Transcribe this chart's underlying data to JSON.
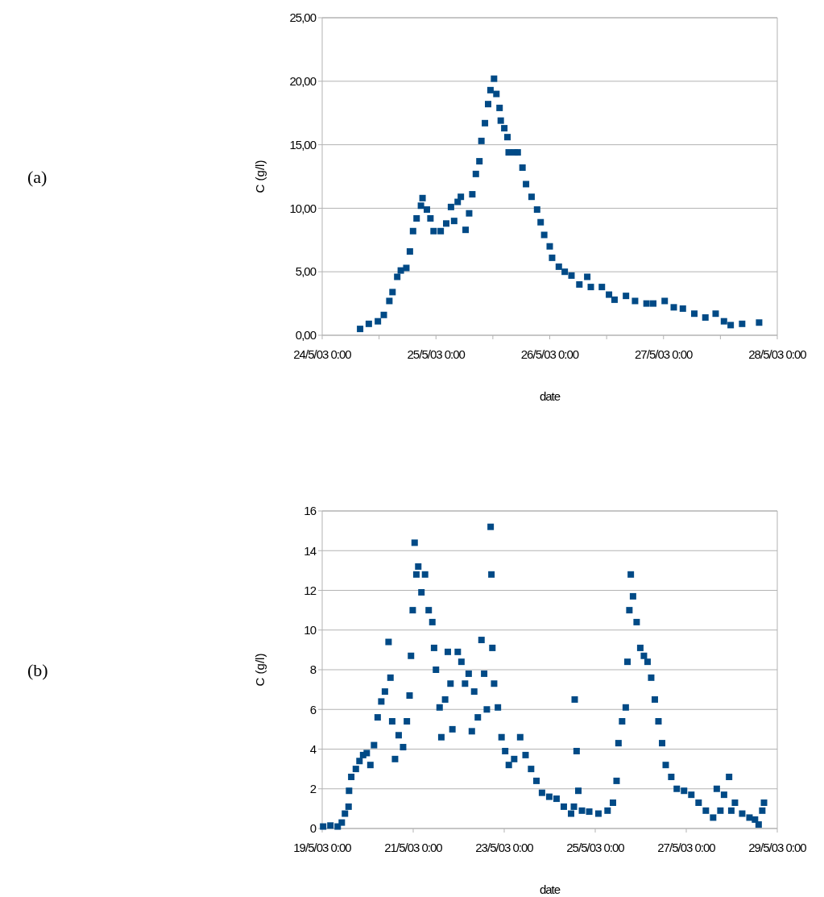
{
  "chart_data": [
    {
      "type": "scatter",
      "annotations": [
        "(a)"
      ],
      "xlabel": "date",
      "ylabel": "C (g/l)",
      "marker": "square",
      "grid": "y",
      "xlim": [
        "--05-24",
        "--05-28"
      ],
      "xticks": [
        {
          "value": "--05-24",
          "label": "24/5/03 0:00"
        },
        {
          "value": "--05-24T12:00",
          "label": null
        },
        {
          "value": "--05-25",
          "label": "25/5/03 0:00"
        },
        {
          "value": "--05-25T12:00",
          "label": null
        },
        {
          "value": "--05-26",
          "label": "26/5/03 0:00"
        },
        {
          "value": "--05-26T12:00",
          "label": null
        },
        {
          "value": "--05-27",
          "label": "27/5/03 0:00"
        },
        {
          "value": "--05-27T12:00",
          "label": null
        },
        {
          "value": "--05-28",
          "label": "28/5/03 0:00"
        }
      ],
      "ylim": [
        0,
        25
      ],
      "yticks": [
        {
          "value": 0,
          "label": "0,00"
        },
        {
          "value": 5,
          "label": "5,00"
        },
        {
          "value": 10,
          "label": "10,00"
        },
        {
          "value": 15,
          "label": "15,00"
        },
        {
          "value": 20,
          "label": "20,00"
        },
        {
          "value": 25,
          "label": "25,00"
        }
      ],
      "series": [
        {
          "color": "#004a86",
          "x": [
            "--05-24T08:00",
            "--05-24T09:50",
            "--05-24T11:45",
            "--05-24T13:00",
            "--05-24T14:10",
            "--05-24T14:50",
            "--05-24T15:50",
            "--05-24T16:35",
            "--05-24T17:45",
            "--05-24T18:30",
            "--05-24T19:10",
            "--05-24T19:55",
            "--05-24T20:50",
            "--05-24T21:10",
            "--05-24T22:05",
            "--05-24T22:50",
            "--05-24T23:30",
            "--05-25T01:00",
            "--05-25T02:10",
            "--05-25T03:10",
            "--05-25T03:50",
            "--05-25T04:35",
            "--05-25T05:15",
            "--05-25T06:15",
            "--05-25T07:00",
            "--05-25T07:40",
            "--05-25T08:25",
            "--05-25T09:10",
            "--05-25T09:35",
            "--05-25T10:20",
            "--05-25T11:00",
            "--05-25T11:30",
            "--05-25T12:15",
            "--05-25T12:45",
            "--05-25T13:25",
            "--05-25T13:40",
            "--05-25T14:25",
            "--05-25T15:05",
            "--05-25T15:20",
            "--05-25T16:35",
            "--05-25T17:15",
            "--05-25T18:15",
            "--05-25T19:00",
            "--05-25T20:10",
            "--05-25T21:20",
            "--05-25T22:05",
            "--05-25T22:50",
            "--05-26T00:00",
            "--05-26T00:30",
            "--05-26T01:55",
            "--05-26T03:10",
            "--05-26T04:35",
            "--05-26T06:15",
            "--05-26T07:55",
            "--05-26T08:40",
            "--05-26T11:00",
            "--05-26T12:30",
            "--05-26T13:40",
            "--05-26T16:05",
            "--05-26T18:00",
            "--05-26T20:25",
            "--05-26T21:50",
            "--05-27T00:15",
            "--05-27T02:10",
            "--05-27T04:05",
            "--05-27T06:30",
            "--05-27T08:50",
            "--05-27T11:00",
            "--05-27T12:45",
            "--05-27T14:10",
            "--05-27T16:35",
            "--05-27T20:10"
          ],
          "values": [
            0.5,
            0.9,
            1.1,
            1.6,
            2.7,
            3.4,
            4.6,
            5.1,
            5.3,
            6.6,
            8.2,
            9.2,
            10.2,
            10.8,
            9.9,
            9.2,
            8.2,
            8.2,
            8.8,
            10.1,
            9.0,
            10.5,
            10.9,
            8.3,
            9.6,
            11.1,
            12.7,
            13.7,
            15.3,
            16.7,
            18.2,
            19.3,
            20.2,
            19.0,
            17.9,
            16.9,
            16.3,
            15.6,
            14.4,
            14.4,
            14.4,
            13.2,
            11.9,
            10.9,
            9.9,
            8.9,
            7.9,
            7.0,
            6.1,
            5.4,
            5.0,
            4.7,
            4.0,
            4.6,
            3.8,
            3.8,
            3.2,
            2.8,
            3.1,
            2.7,
            2.5,
            2.5,
            2.7,
            2.2,
            2.1,
            1.7,
            1.4,
            1.7,
            1.1,
            0.8,
            0.9,
            1.0
          ]
        }
      ]
    },
    {
      "type": "scatter",
      "annotations": [
        "(b)"
      ],
      "xlabel": "date",
      "ylabel": "C (g/l)",
      "marker": "square",
      "grid": "y",
      "xlim": [
        "--05-19",
        "--05-29"
      ],
      "xticks": [
        {
          "value": "--05-19",
          "label": "19/5/03 0:00"
        },
        {
          "value": "--05-21",
          "label": "21/5/03 0:00"
        },
        {
          "value": "--05-23",
          "label": "23/5/03 0:00"
        },
        {
          "value": "--05-25",
          "label": "25/5/03 0:00"
        },
        {
          "value": "--05-27",
          "label": "27/5/03 0:00"
        },
        {
          "value": "--05-29",
          "label": "29/5/03 0:00"
        }
      ],
      "ylim": [
        0,
        16
      ],
      "yticks": [
        0,
        2,
        4,
        6,
        8,
        10,
        12,
        14,
        16
      ],
      "series": [
        {
          "color": "#004a86",
          "x": [
            "--05-19T00:30",
            "--05-19T04:20",
            "--05-19T08:10",
            "--05-19T10:20",
            "--05-19T12:00",
            "--05-19T13:55",
            "--05-19T14:10",
            "--05-19T15:20",
            "--05-19T17:45",
            "--05-19T19:40",
            "--05-19T21:35",
            "--05-19T23:30",
            "--05-20T01:25",
            "--05-20T03:20",
            "--05-20T05:15",
            "--05-20T07:10",
            "--05-20T09:05",
            "--05-20T11:00",
            "--05-20T12:00",
            "--05-20T12:55",
            "--05-20T14:25",
            "--05-20T16:20",
            "--05-20T18:40",
            "--05-20T20:40",
            "--05-20T22:05",
            "--05-20T22:50",
            "--05-20T23:45",
            "--05-21T00:45",
            "--05-21T01:40",
            "--05-21T02:40",
            "--05-21T04:20",
            "--05-21T06:15",
            "--05-21T08:10",
            "--05-21T10:05",
            "--05-21T11:00",
            "--05-21T12:00",
            "--05-21T13:55",
            "--05-21T14:50",
            "--05-21T16:50",
            "--05-21T18:15",
            "--05-21T19:40",
            "--05-21T20:40",
            "--05-21T23:30",
            "--05-22T01:25",
            "--05-22T03:20",
            "--05-22T05:15",
            "--05-22T06:55",
            "--05-22T08:10",
            "--05-22T10:05",
            "--05-22T12:00",
            "--05-22T13:25",
            "--05-22T14:50",
            "--05-22T16:50",
            "--05-22T17:15",
            "--05-22T17:45",
            "--05-22T18:40",
            "--05-22T20:40",
            "--05-22T22:35",
            "--05-23T00:30",
            "--05-23T02:25",
            "--05-23T05:15",
            "--05-23T08:25",
            "--05-23T11:15",
            "--05-23T14:10",
            "--05-23T17:00",
            "--05-23T19:55",
            "--05-23T23:45",
            "--05-24T03:35",
            "--05-24T07:25",
            "--05-24T11:15",
            "--05-24T12:45",
            "--05-24T13:10",
            "--05-24T14:10",
            "--05-24T15:05",
            "--05-24T17:00",
            "--05-24T20:50",
            "--05-25T01:40",
            "--05-25T06:30",
            "--05-25T09:20",
            "--05-25T11:15",
            "--05-25T12:15",
            "--05-25T14:10",
            "--05-25T16:05",
            "--05-25T17:00",
            "--05-25T18:00",
            "--05-25T18:45",
            "--05-25T19:55",
            "--05-25T21:50",
            "--05-25T23:45",
            "--05-26T01:40",
            "--05-26T03:35",
            "--05-26T05:30",
            "--05-26T07:25",
            "--05-26T09:20",
            "--05-26T11:15",
            "--05-26T13:10",
            "--05-26T16:05",
            "--05-26T19:00",
            "--05-26T22:50",
            "--05-27T02:40",
            "--05-27T06:30",
            "--05-27T10:20",
            "--05-27T14:10",
            "--05-27T16:05",
            "--05-27T18:00",
            "--05-27T19:55",
            "--05-27T22:35",
            "--05-27T23:45",
            "--05-28T01:40",
            "--05-28T05:30",
            "--05-28T09:20",
            "--05-28T12:15",
            "--05-28T14:10",
            "--05-28T16:05",
            "--05-28T17:00"
          ],
          "values": [
            0.1,
            0.15,
            0.1,
            0.3,
            0.75,
            1.1,
            1.9,
            2.6,
            3.0,
            3.4,
            3.7,
            3.8,
            3.2,
            4.2,
            5.6,
            6.4,
            6.9,
            9.4,
            7.6,
            5.4,
            3.5,
            4.7,
            4.1,
            5.4,
            6.7,
            8.7,
            11.0,
            14.4,
            12.8,
            13.2,
            11.9,
            12.8,
            11.0,
            10.4,
            9.1,
            8.0,
            6.1,
            4.6,
            6.5,
            8.9,
            7.3,
            5.0,
            8.9,
            8.4,
            7.3,
            7.8,
            4.9,
            6.9,
            5.6,
            9.5,
            7.8,
            6.0,
            15.2,
            12.8,
            9.1,
            7.3,
            6.1,
            4.6,
            3.9,
            3.2,
            3.5,
            4.6,
            3.7,
            3.0,
            2.4,
            1.8,
            1.6,
            1.5,
            1.1,
            0.75,
            1.1,
            6.5,
            3.9,
            1.9,
            0.9,
            0.85,
            0.75,
            0.9,
            1.3,
            2.4,
            4.3,
            5.4,
            6.1,
            8.4,
            11.0,
            12.8,
            11.7,
            10.4,
            9.1,
            8.7,
            8.4,
            7.6,
            6.5,
            5.4,
            4.3,
            3.2,
            2.6,
            2.0,
            1.9,
            1.7,
            1.3,
            0.9,
            0.55,
            2.0,
            0.9,
            1.7,
            2.6,
            0.9,
            1.3,
            0.75,
            0.55,
            0.45,
            0.2,
            0.9,
            1.3
          ]
        }
      ]
    }
  ]
}
